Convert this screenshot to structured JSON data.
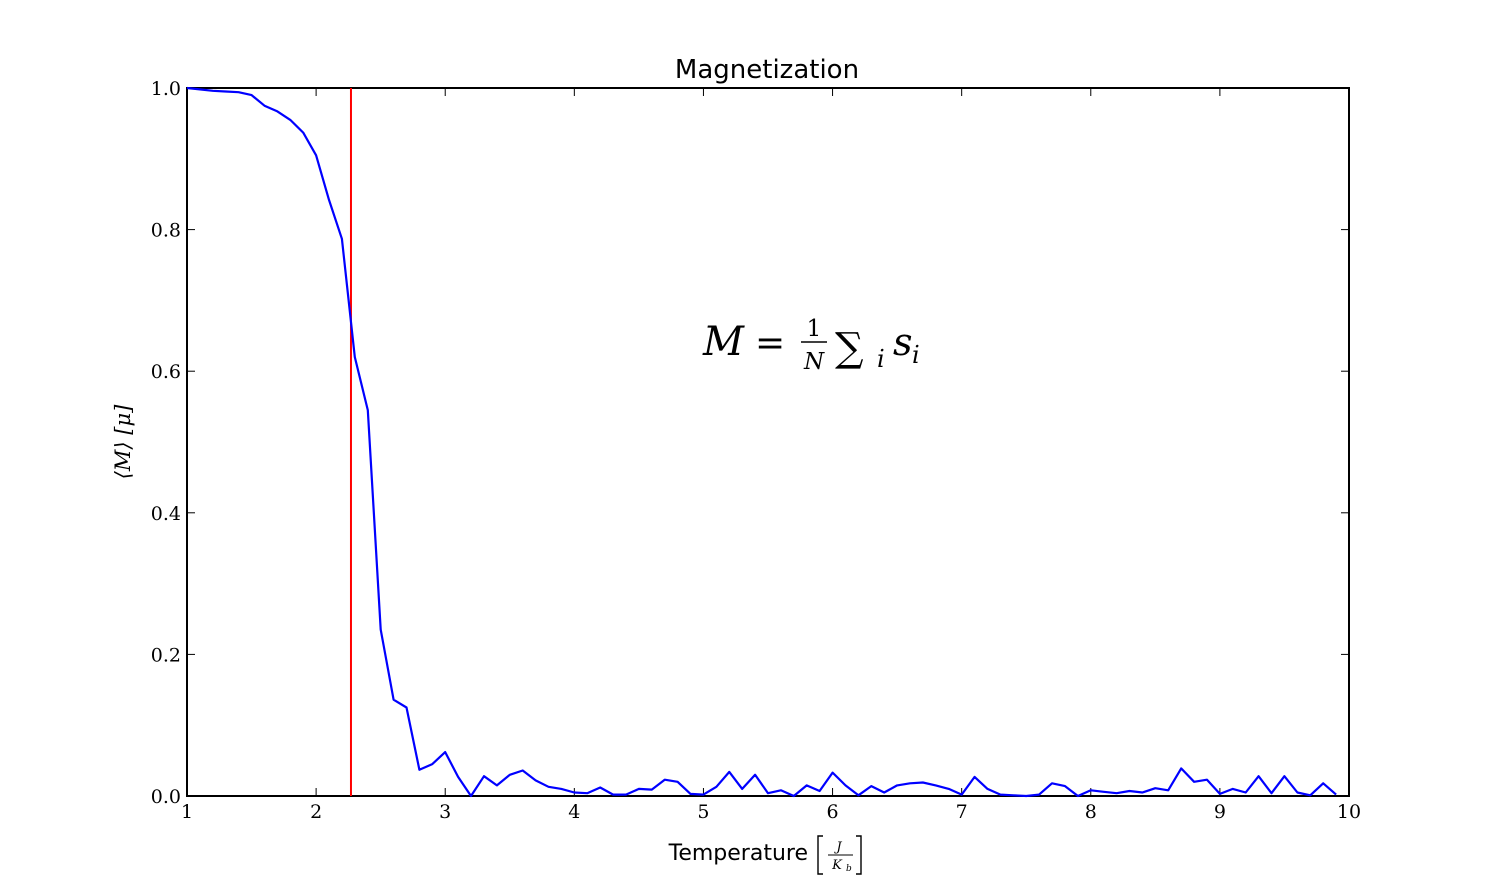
{
  "chart_data": {
    "type": "line",
    "title": "Magnetization",
    "xlabel_text": "Temperature",
    "xlabel_unit_num": "J",
    "xlabel_unit_den": "K",
    "xlabel_unit_den_sub": "b",
    "ylabel": "⟨M⟩ [μ]",
    "annotation": {
      "lhs": "M",
      "eq": "=",
      "frac_num": "1",
      "frac_den": "N",
      "sum": "∑",
      "sum_sub": "i",
      "term": "s",
      "term_sub": "i"
    },
    "xlim": [
      1,
      10
    ],
    "ylim": [
      0.0,
      1.0
    ],
    "xticks": [
      1,
      2,
      3,
      4,
      5,
      6,
      7,
      8,
      9,
      10
    ],
    "xtick_labels": [
      "1",
      "2",
      "3",
      "4",
      "5",
      "6",
      "7",
      "8",
      "9",
      "10"
    ],
    "yticks": [
      0.0,
      0.2,
      0.4,
      0.6,
      0.8,
      1.0
    ],
    "ytick_labels": [
      "0.0",
      "0.2",
      "0.4",
      "0.6",
      "0.8",
      "1.0"
    ],
    "grid": false,
    "vline": {
      "x": 2.27,
      "color": "#ff0000"
    },
    "series": [
      {
        "color": "#0000ff",
        "x": [
          1.0,
          1.1,
          1.2,
          1.3,
          1.4,
          1.5,
          1.6,
          1.7,
          1.8,
          1.9,
          2.0,
          2.1,
          2.2,
          2.3,
          2.4,
          2.5,
          2.6,
          2.7,
          2.8,
          2.9,
          3.0,
          3.1,
          3.2,
          3.3,
          3.4,
          3.5,
          3.6,
          3.7,
          3.8,
          3.9,
          4.0,
          4.1,
          4.2,
          4.3,
          4.4,
          4.5,
          4.6,
          4.7,
          4.8,
          4.9,
          5.0,
          5.1,
          5.2,
          5.3,
          5.4,
          5.5,
          5.6,
          5.7,
          5.8,
          5.9,
          6.0,
          6.1,
          6.2,
          6.3,
          6.4,
          6.5,
          6.6,
          6.7,
          6.8,
          6.9,
          7.0,
          7.1,
          7.2,
          7.3,
          7.4,
          7.5,
          7.6,
          7.7,
          7.8,
          7.9,
          8.0,
          8.1,
          8.2,
          8.3,
          8.4,
          8.5,
          8.6,
          8.7,
          8.8,
          8.9,
          9.0,
          9.1,
          9.2,
          9.3,
          9.4,
          9.5,
          9.6,
          9.7,
          9.8,
          9.9
        ],
        "y": [
          1.0,
          0.998,
          0.996,
          0.995,
          0.994,
          0.99,
          0.975,
          0.967,
          0.955,
          0.937,
          0.905,
          0.842,
          0.787,
          0.62,
          0.545,
          0.235,
          0.136,
          0.125,
          0.037,
          0.045,
          0.062,
          0.027,
          0.0,
          0.028,
          0.015,
          0.03,
          0.036,
          0.022,
          0.013,
          0.01,
          0.005,
          0.004,
          0.012,
          0.002,
          0.002,
          0.01,
          0.009,
          0.023,
          0.02,
          0.003,
          0.002,
          0.013,
          0.034,
          0.01,
          0.03,
          0.004,
          0.008,
          0.0,
          0.015,
          0.007,
          0.033,
          0.015,
          0.001,
          0.014,
          0.005,
          0.015,
          0.018,
          0.019,
          0.015,
          0.01,
          0.002,
          0.027,
          0.01,
          0.002,
          0.001,
          0.0,
          0.002,
          0.018,
          0.014,
          0.0,
          0.008,
          0.006,
          0.004,
          0.007,
          0.005,
          0.011,
          0.008,
          0.039,
          0.02,
          0.023,
          0.003,
          0.01,
          0.005,
          0.028,
          0.004,
          0.028,
          0.005,
          0.001,
          0.018,
          0.002
        ]
      }
    ]
  }
}
